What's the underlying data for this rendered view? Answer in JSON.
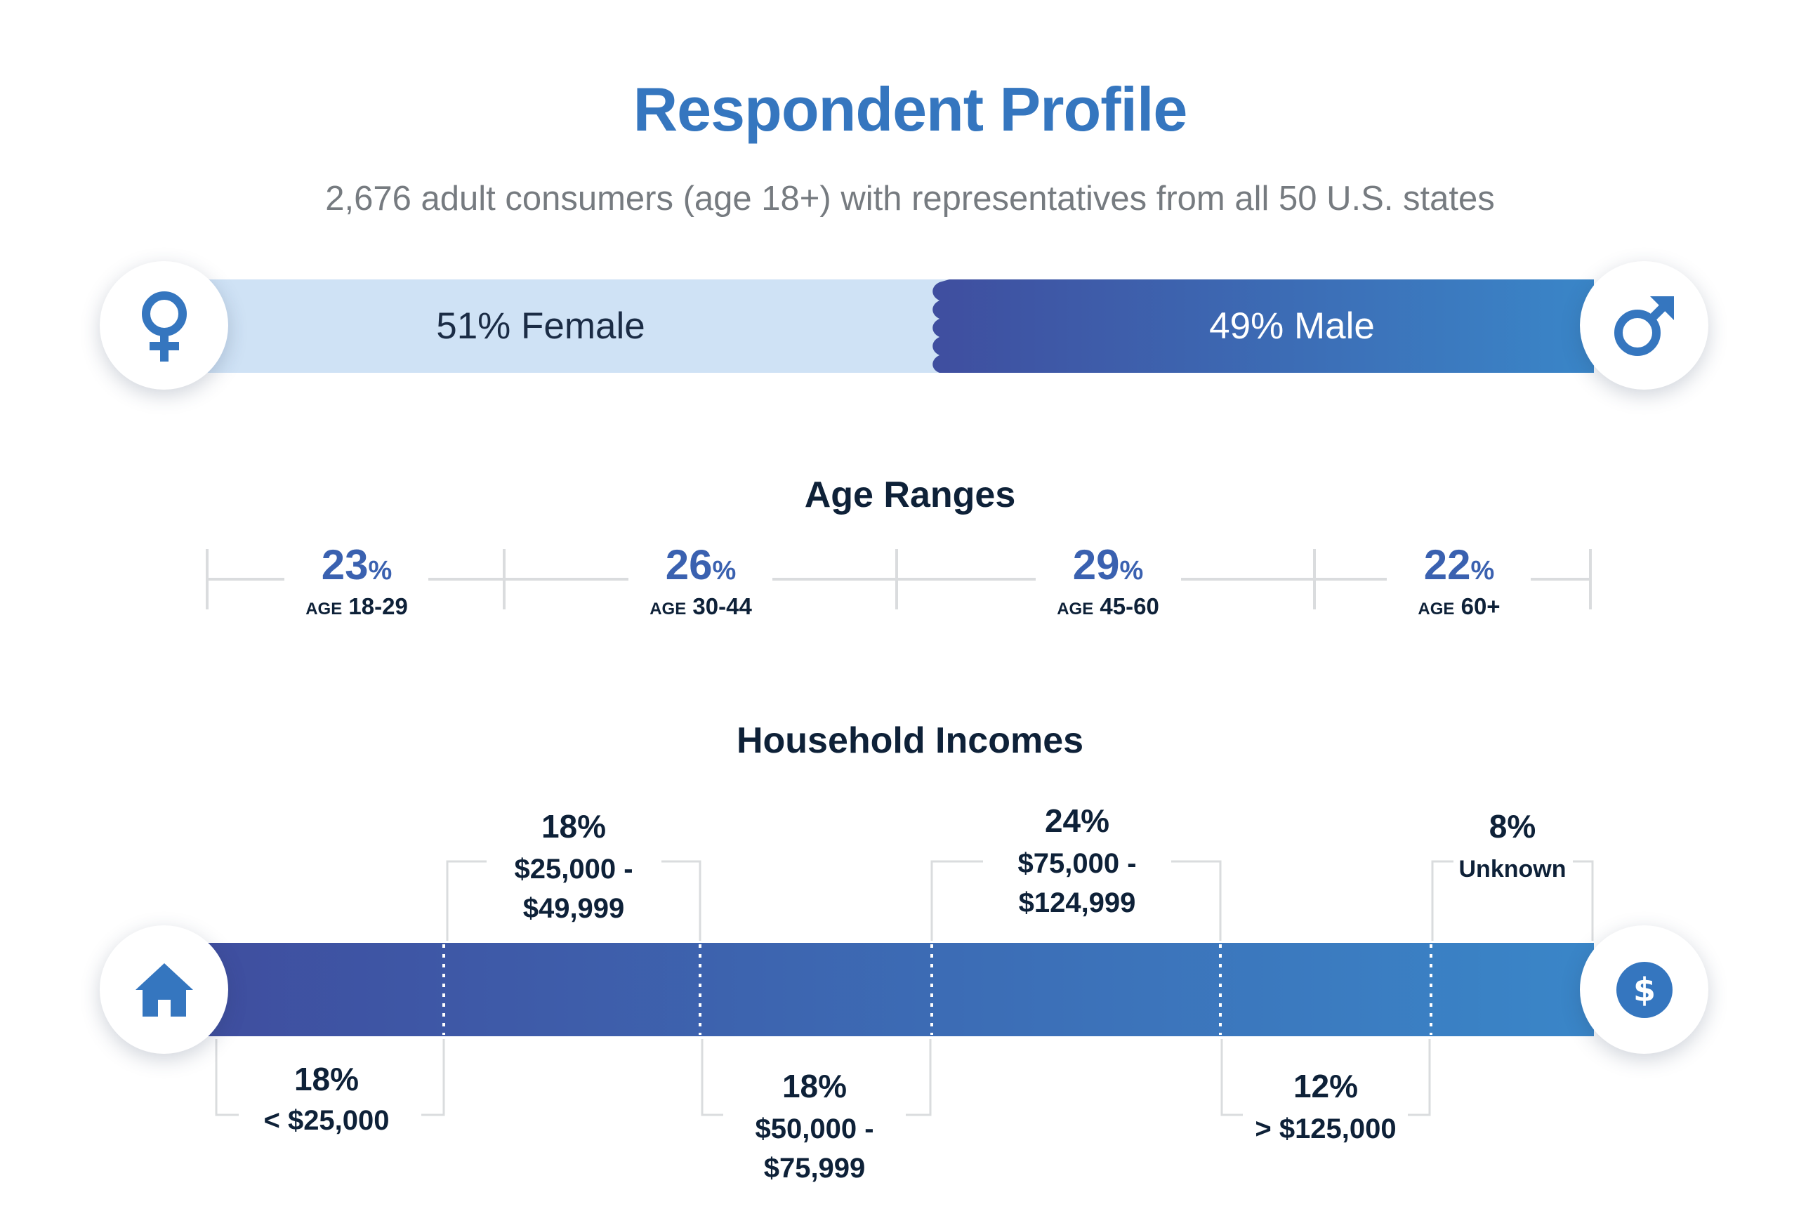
{
  "title": "Respondent Profile",
  "subtitle": "2,676 adult consumers (age 18+) with representatives from all 50 U.S. states",
  "gender": {
    "female": {
      "label": "51% Female",
      "value": 51,
      "icon": "female-icon"
    },
    "male": {
      "label": "49% Male",
      "value": 49,
      "icon": "male-icon"
    }
  },
  "age_ranges": {
    "heading": "Age Ranges",
    "items": [
      {
        "value": "23",
        "unit": "%",
        "prefix": "AGE",
        "range": "18-29"
      },
      {
        "value": "26",
        "unit": "%",
        "prefix": "AGE",
        "range": "30-44"
      },
      {
        "value": "29",
        "unit": "%",
        "prefix": "AGE",
        "range": "45-60"
      },
      {
        "value": "22",
        "unit": "%",
        "prefix": "AGE",
        "range": "60+"
      }
    ]
  },
  "household_incomes": {
    "heading": "Household Incomes",
    "items": [
      {
        "pct": "18%",
        "line1": "< $25,000",
        "line2": ""
      },
      {
        "pct": "18%",
        "line1": "$25,000 -",
        "line2": "$49,999"
      },
      {
        "pct": "18%",
        "line1": "$50,000 -",
        "line2": "$75,999"
      },
      {
        "pct": "24%",
        "line1": "$75,000 -",
        "line2": "$124,999"
      },
      {
        "pct": "12%",
        "line1": "> $125,000",
        "line2": ""
      },
      {
        "pct": "8%",
        "line1": "Unknown",
        "line2": ""
      }
    ],
    "left_icon": "house-icon",
    "right_icon": "dollar-icon"
  },
  "colors": {
    "accent": "#3576bf",
    "female_bar": "#cfe2f5",
    "gradient_start": "#3f4e9f",
    "gradient_end": "#3a86c8",
    "dark_text": "#0e2138",
    "subtitle": "#767b80"
  }
}
